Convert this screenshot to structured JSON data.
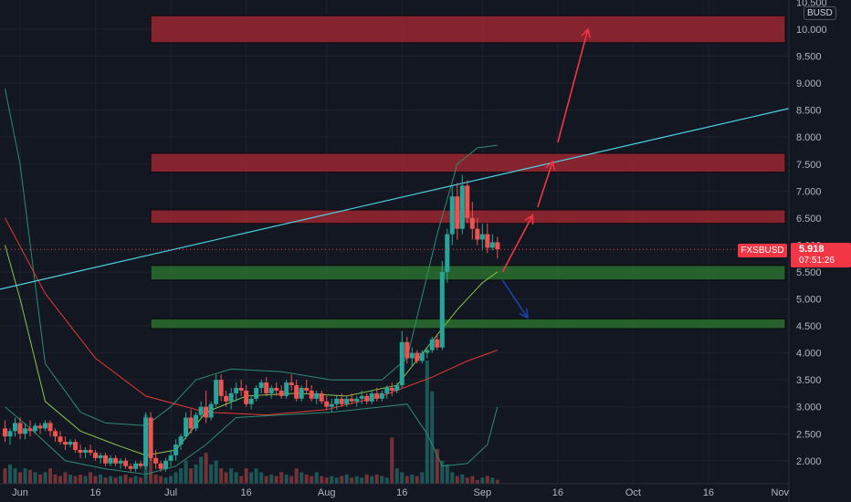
{
  "axis": {
    "currency": "BUSD",
    "y_ticks": [
      "10.500",
      "10.000",
      "9.500",
      "9.000",
      "8.500",
      "8.000",
      "7.500",
      "7.000",
      "6.500",
      "6.000",
      "5.500",
      "5.000",
      "4.500",
      "4.000",
      "3.500",
      "3.000",
      "2.500",
      "2.000"
    ],
    "x_ticks": [
      "Jun",
      "16",
      "Jul",
      "16",
      "Aug",
      "16",
      "Sep",
      "16",
      "Oct",
      "16",
      "Nov"
    ]
  },
  "ticker": {
    "symbol": "FXSBUSD",
    "price": "5.918",
    "countdown": "07:51:26"
  },
  "colors": {
    "up": "#26a69a",
    "down": "#ef5350",
    "resistance": "#b22833",
    "support": "#2e7d32",
    "trendline": "#4dd0e1",
    "arrow_up": "#f23645",
    "arrow_down": "#1e40af"
  },
  "chart_data": {
    "type": "candlestick",
    "symbol": "FXSBUSD",
    "ylim": [
      1.7,
      10.6
    ],
    "y_scale": "linear",
    "x_range": [
      "2022-05-28",
      "2022-11-01"
    ],
    "last_price": 5.918,
    "candles": [
      [
        "05-29",
        2.6,
        2.75,
        2.35,
        2.45
      ],
      [
        "05-30",
        2.45,
        2.6,
        2.3,
        2.55
      ],
      [
        "05-31",
        2.55,
        2.8,
        2.45,
        2.7
      ],
      [
        "06-01",
        2.7,
        2.8,
        2.4,
        2.5
      ],
      [
        "06-02",
        2.5,
        2.7,
        2.4,
        2.6
      ],
      [
        "06-03",
        2.6,
        2.75,
        2.45,
        2.55
      ],
      [
        "06-04",
        2.55,
        2.7,
        2.5,
        2.65
      ],
      [
        "06-05",
        2.65,
        2.7,
        2.5,
        2.6
      ],
      [
        "06-06",
        2.6,
        2.75,
        2.55,
        2.7
      ],
      [
        "06-07",
        2.7,
        2.75,
        2.45,
        2.55
      ],
      [
        "06-08",
        2.55,
        2.6,
        2.35,
        2.45
      ],
      [
        "06-09",
        2.45,
        2.55,
        2.3,
        2.35
      ],
      [
        "06-10",
        2.35,
        2.45,
        2.2,
        2.3
      ],
      [
        "06-11",
        2.3,
        2.4,
        2.25,
        2.35
      ],
      [
        "06-12",
        2.35,
        2.4,
        2.15,
        2.2
      ],
      [
        "06-13",
        2.2,
        2.3,
        2.05,
        2.15
      ],
      [
        "06-14",
        2.15,
        2.25,
        2.05,
        2.2
      ],
      [
        "06-15",
        2.2,
        2.3,
        2.1,
        2.15
      ],
      [
        "06-16",
        2.15,
        2.2,
        2.0,
        2.05
      ],
      [
        "06-17",
        2.05,
        2.15,
        1.95,
        2.1
      ],
      [
        "06-18",
        2.1,
        2.15,
        1.9,
        1.95
      ],
      [
        "06-19",
        1.95,
        2.1,
        1.9,
        2.05
      ],
      [
        "06-20",
        2.05,
        2.1,
        1.9,
        1.95
      ],
      [
        "06-21",
        1.95,
        2.05,
        1.85,
        2.0
      ],
      [
        "06-22",
        2.0,
        2.05,
        1.85,
        1.9
      ],
      [
        "06-23",
        1.9,
        1.95,
        1.8,
        1.85
      ],
      [
        "06-24",
        1.85,
        2.0,
        1.8,
        1.95
      ],
      [
        "06-25",
        1.95,
        2.0,
        1.85,
        1.9
      ],
      [
        "06-26",
        1.9,
        2.9,
        1.85,
        2.8
      ],
      [
        "06-27",
        2.8,
        2.9,
        2.0,
        2.05
      ],
      [
        "06-28",
        2.05,
        2.2,
        1.85,
        1.95
      ],
      [
        "06-29",
        1.95,
        2.0,
        1.8,
        1.85
      ],
      [
        "06-30",
        1.85,
        2.05,
        1.8,
        2.0
      ],
      [
        "07-01",
        2.0,
        2.2,
        1.9,
        2.1
      ],
      [
        "07-02",
        2.1,
        2.4,
        2.0,
        2.3
      ],
      [
        "07-03",
        2.3,
        2.5,
        2.2,
        2.45
      ],
      [
        "07-04",
        2.45,
        2.9,
        2.4,
        2.8
      ],
      [
        "07-05",
        2.8,
        2.95,
        2.5,
        2.6
      ],
      [
        "07-06",
        2.6,
        2.9,
        2.55,
        2.85
      ],
      [
        "07-07",
        2.85,
        3.1,
        2.8,
        3.0
      ],
      [
        "07-08",
        3.0,
        3.3,
        2.7,
        2.8
      ],
      [
        "07-09",
        2.8,
        3.1,
        2.75,
        3.05
      ],
      [
        "07-10",
        3.05,
        3.6,
        3.0,
        3.5
      ],
      [
        "07-11",
        3.5,
        3.6,
        3.1,
        3.2
      ],
      [
        "07-12",
        3.2,
        3.3,
        3.0,
        3.1
      ],
      [
        "07-13",
        3.1,
        3.35,
        2.95,
        3.25
      ],
      [
        "07-14",
        3.25,
        3.45,
        3.1,
        3.35
      ],
      [
        "07-15",
        3.35,
        3.5,
        3.2,
        3.3
      ],
      [
        "07-16",
        3.3,
        3.4,
        3.0,
        3.05
      ],
      [
        "07-17",
        3.05,
        3.2,
        2.95,
        3.15
      ],
      [
        "07-18",
        3.15,
        3.4,
        3.1,
        3.35
      ],
      [
        "07-19",
        3.35,
        3.5,
        3.25,
        3.45
      ],
      [
        "07-20",
        3.45,
        3.55,
        3.2,
        3.25
      ],
      [
        "07-21",
        3.25,
        3.4,
        3.15,
        3.35
      ],
      [
        "07-22",
        3.35,
        3.45,
        3.2,
        3.3
      ],
      [
        "07-23",
        3.3,
        3.4,
        3.15,
        3.2
      ],
      [
        "07-24",
        3.2,
        3.5,
        3.15,
        3.45
      ],
      [
        "07-25",
        3.45,
        3.6,
        3.3,
        3.4
      ],
      [
        "07-26",
        3.4,
        3.5,
        3.1,
        3.15
      ],
      [
        "07-27",
        3.15,
        3.4,
        3.1,
        3.35
      ],
      [
        "07-28",
        3.35,
        3.5,
        3.25,
        3.3
      ],
      [
        "07-29",
        3.3,
        3.4,
        3.1,
        3.15
      ],
      [
        "07-30",
        3.15,
        3.3,
        3.05,
        3.25
      ],
      [
        "07-31",
        3.25,
        3.3,
        3.05,
        3.1
      ],
      [
        "08-01",
        3.1,
        3.2,
        2.95,
        3.0
      ],
      [
        "08-02",
        3.0,
        3.15,
        2.9,
        3.05
      ],
      [
        "08-03",
        3.05,
        3.2,
        2.95,
        3.15
      ],
      [
        "08-04",
        3.15,
        3.25,
        3.0,
        3.05
      ],
      [
        "08-05",
        3.05,
        3.2,
        3.0,
        3.15
      ],
      [
        "08-06",
        3.15,
        3.25,
        3.05,
        3.1
      ],
      [
        "08-07",
        3.1,
        3.2,
        3.0,
        3.15
      ],
      [
        "08-08",
        3.15,
        3.3,
        3.05,
        3.2
      ],
      [
        "08-09",
        3.2,
        3.25,
        3.05,
        3.1
      ],
      [
        "08-10",
        3.1,
        3.3,
        3.05,
        3.25
      ],
      [
        "08-11",
        3.25,
        3.35,
        3.1,
        3.15
      ],
      [
        "08-12",
        3.15,
        3.3,
        3.1,
        3.25
      ],
      [
        "08-13",
        3.25,
        3.4,
        3.15,
        3.35
      ],
      [
        "08-14",
        3.35,
        3.45,
        3.2,
        3.3
      ],
      [
        "08-15",
        3.3,
        3.45,
        3.25,
        3.4
      ],
      [
        "08-16",
        3.4,
        4.4,
        3.35,
        4.2
      ],
      [
        "08-17",
        4.2,
        4.3,
        3.8,
        3.9
      ],
      [
        "08-18",
        3.9,
        4.1,
        3.75,
        4.0
      ],
      [
        "08-19",
        4.0,
        4.05,
        3.8,
        3.85
      ],
      [
        "08-20",
        3.85,
        4.05,
        3.8,
        4.0
      ],
      [
        "08-21",
        4.0,
        4.1,
        3.9,
        4.05
      ],
      [
        "08-22",
        4.05,
        4.3,
        4.0,
        4.25
      ],
      [
        "08-23",
        4.25,
        4.35,
        4.05,
        4.1
      ],
      [
        "08-24",
        4.1,
        5.7,
        4.05,
        5.5
      ],
      [
        "08-25",
        5.5,
        6.3,
        5.3,
        6.2
      ],
      [
        "08-26",
        6.2,
        7.1,
        6.0,
        6.9
      ],
      [
        "08-27",
        6.9,
        7.15,
        6.1,
        6.3
      ],
      [
        "08-28",
        6.3,
        7.3,
        6.2,
        7.1
      ],
      [
        "08-29",
        7.1,
        7.2,
        6.4,
        6.5
      ],
      [
        "08-30",
        6.5,
        6.8,
        6.1,
        6.3
      ],
      [
        "08-31",
        6.3,
        6.5,
        6.0,
        6.1
      ],
      [
        "09-01",
        6.1,
        6.4,
        5.9,
        6.2
      ],
      [
        "09-02",
        6.2,
        6.4,
        5.85,
        5.95
      ],
      [
        "09-03",
        5.95,
        6.2,
        5.9,
        6.05
      ],
      [
        "09-04",
        6.05,
        6.15,
        5.75,
        5.918
      ]
    ],
    "volume": [
      0.2,
      0.25,
      0.2,
      0.15,
      0.2,
      0.18,
      0.15,
      0.12,
      0.15,
      0.2,
      0.12,
      0.1,
      0.15,
      0.12,
      0.1,
      0.12,
      0.1,
      0.15,
      0.1,
      0.12,
      0.08,
      0.1,
      0.08,
      0.1,
      0.12,
      0.08,
      0.1,
      0.08,
      0.9,
      0.4,
      0.12,
      0.1,
      0.08,
      0.1,
      0.15,
      0.2,
      0.3,
      0.2,
      0.25,
      0.35,
      0.4,
      0.25,
      0.3,
      0.2,
      0.15,
      0.2,
      0.15,
      0.1,
      0.2,
      0.15,
      0.2,
      0.15,
      0.1,
      0.12,
      0.1,
      0.15,
      0.12,
      0.1,
      0.2,
      0.15,
      0.12,
      0.1,
      0.15,
      0.1,
      0.08,
      0.1,
      0.08,
      0.1,
      0.12,
      0.08,
      0.1,
      0.08,
      0.12,
      0.1,
      0.12,
      0.1,
      0.08,
      0.6,
      0.2,
      0.15,
      0.1,
      0.12,
      0.1,
      0.15,
      1.6,
      1.2,
      0.45,
      0.3,
      0.25,
      0.15,
      0.1,
      0.12,
      0.08,
      0.1,
      0.05,
      0.08,
      0.1,
      0.08,
      0.05
    ],
    "ma_slow": [
      [
        0,
        6.5
      ],
      [
        8,
        5.1
      ],
      [
        18,
        3.9
      ],
      [
        28,
        3.2
      ],
      [
        40,
        2.9
      ],
      [
        52,
        2.85
      ],
      [
        64,
        2.95
      ],
      [
        75,
        3.2
      ],
      [
        85,
        3.55
      ],
      [
        92,
        3.85
      ],
      [
        98,
        4.05
      ]
    ],
    "bollinger": {
      "upper": [
        [
          0,
          8.9
        ],
        [
          3,
          7.5
        ],
        [
          8,
          3.8
        ],
        [
          15,
          2.9
        ],
        [
          20,
          2.7
        ],
        [
          28,
          2.65
        ],
        [
          33,
          3.0
        ],
        [
          38,
          3.5
        ],
        [
          45,
          3.7
        ],
        [
          55,
          3.65
        ],
        [
          65,
          3.5
        ],
        [
          75,
          3.5
        ],
        [
          80,
          3.9
        ],
        [
          86,
          6.2
        ],
        [
          90,
          7.5
        ],
        [
          94,
          7.8
        ],
        [
          98,
          7.85
        ]
      ],
      "basis": [
        [
          0,
          6.0
        ],
        [
          3,
          5.0
        ],
        [
          8,
          3.1
        ],
        [
          15,
          2.55
        ],
        [
          22,
          2.3
        ],
        [
          28,
          2.1
        ],
        [
          34,
          2.2
        ],
        [
          40,
          2.9
        ],
        [
          48,
          3.2
        ],
        [
          58,
          3.25
        ],
        [
          68,
          3.2
        ],
        [
          78,
          3.4
        ],
        [
          84,
          4.1
        ],
        [
          90,
          4.8
        ],
        [
          95,
          5.3
        ],
        [
          98,
          5.5
        ]
      ],
      "lower": [
        [
          0,
          3.0
        ],
        [
          5,
          2.6
        ],
        [
          12,
          2.0
        ],
        [
          20,
          1.85
        ],
        [
          28,
          1.75
        ],
        [
          34,
          1.9
        ],
        [
          40,
          2.3
        ],
        [
          46,
          2.8
        ],
        [
          55,
          2.85
        ],
        [
          65,
          2.9
        ],
        [
          75,
          3.0
        ],
        [
          80,
          3.05
        ],
        [
          84,
          2.5
        ],
        [
          87,
          1.9
        ],
        [
          92,
          1.95
        ],
        [
          96,
          2.3
        ],
        [
          98,
          3.0
        ]
      ]
    },
    "zones": [
      {
        "kind": "resistance",
        "y1": 9.75,
        "y2": 10.25,
        "from": "2022-06-27",
        "to": "2022-11-01"
      },
      {
        "kind": "resistance",
        "y1": 7.35,
        "y2": 7.7,
        "from": "2022-06-27",
        "to": "2022-11-01"
      },
      {
        "kind": "resistance",
        "y1": 6.4,
        "y2": 6.65,
        "from": "2022-06-27",
        "to": "2022-11-01"
      },
      {
        "kind": "support",
        "y1": 5.35,
        "y2": 5.62,
        "from": "2022-06-27",
        "to": "2022-11-01"
      },
      {
        "kind": "support",
        "y1": 4.45,
        "y2": 4.63,
        "from": "2022-06-27",
        "to": "2022-11-01"
      }
    ],
    "trendline": {
      "x1": "2022-05-28",
      "y1": 5.18,
      "x2": "2022-11-01",
      "y2": 8.53
    },
    "arrows": [
      {
        "dir": "up",
        "x1": "2022-09-05",
        "y1": 5.5,
        "x2": "2022-09-11",
        "y2": 6.55
      },
      {
        "dir": "up",
        "x1": "2022-09-12",
        "y1": 6.7,
        "x2": "2022-09-15",
        "y2": 7.55
      },
      {
        "dir": "up",
        "x1": "2022-09-16",
        "y1": 7.9,
        "x2": "2022-09-22",
        "y2": 10.0
      },
      {
        "dir": "down",
        "x1": "2022-09-05",
        "y1": 5.35,
        "x2": "2022-09-10",
        "y2": 4.65
      }
    ]
  }
}
